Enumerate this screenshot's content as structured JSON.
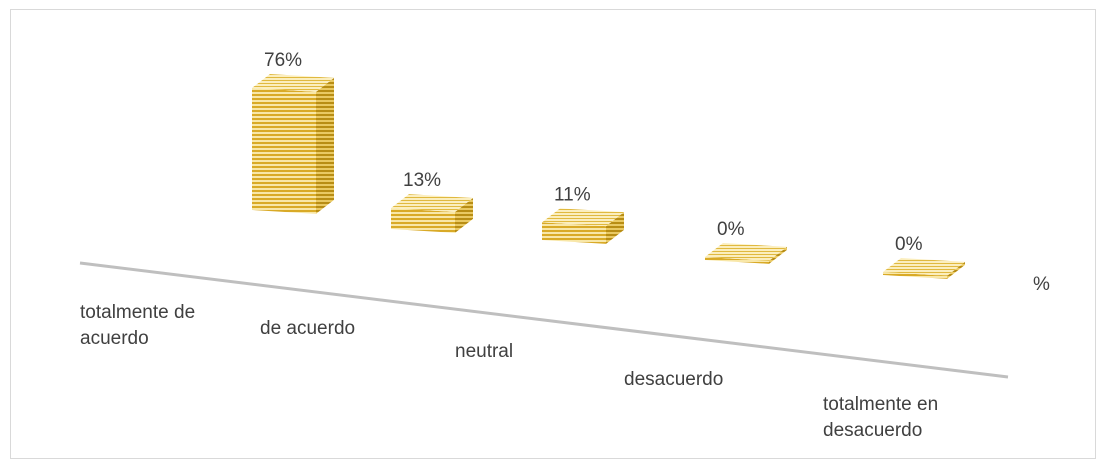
{
  "chart_data": {
    "type": "bar",
    "categories": [
      [
        "totalmente de",
        "acuerdo"
      ],
      [
        "de acuerdo"
      ],
      [
        "neutral"
      ],
      [
        "desacuerdo"
      ],
      [
        "totalmente en",
        "desacuerdo"
      ]
    ],
    "series": [
      {
        "name": "%",
        "values": [
          76,
          13,
          11,
          0,
          0
        ]
      }
    ],
    "data_labels": [
      "76%",
      "13%",
      "11%",
      "0%",
      "0%"
    ],
    "legend": "right",
    "grid": false,
    "colors": {
      "bar_light": "#f6e2a0",
      "bar_dark": "#d9ab2a",
      "axis": "#bfbfbf",
      "text": "#404040"
    }
  }
}
